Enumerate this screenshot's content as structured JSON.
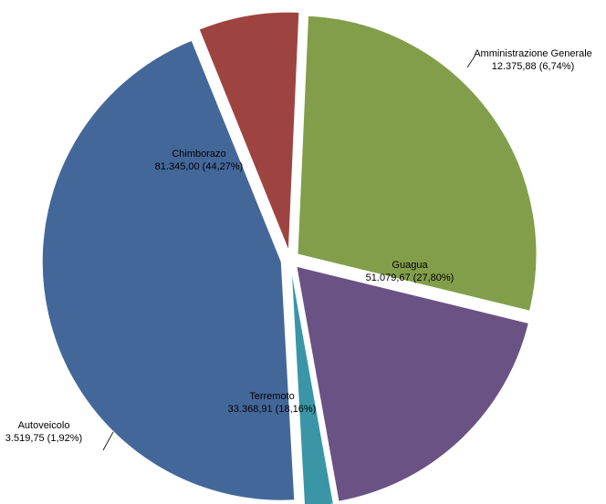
{
  "chart_data": {
    "type": "pie",
    "title": "",
    "slices": [
      {
        "name": "Amministrazione Generale",
        "value": 12375.88,
        "value_label": "12.375,88",
        "percent_label": "(6,74%)",
        "color": "#9e4440"
      },
      {
        "name": "Guagua",
        "value": 51079.67,
        "value_label": "51.079,67",
        "percent_label": "(27,80%)",
        "color": "#829e4a"
      },
      {
        "name": "Terremoto",
        "value": 33368.91,
        "value_label": "33.368,91",
        "percent_label": "(18,16%)",
        "color": "#6a5284"
      },
      {
        "name": "Autoveicolo",
        "value": 3519.75,
        "value_label": "3.519,75",
        "percent_label": "(1,92%)",
        "color": "#3a96a6"
      },
      {
        "name": "Chimborazo",
        "value": 81345.0,
        "value_label": "81.345,00",
        "percent_label": "(44,27%)",
        "color": "#44679a"
      }
    ]
  }
}
